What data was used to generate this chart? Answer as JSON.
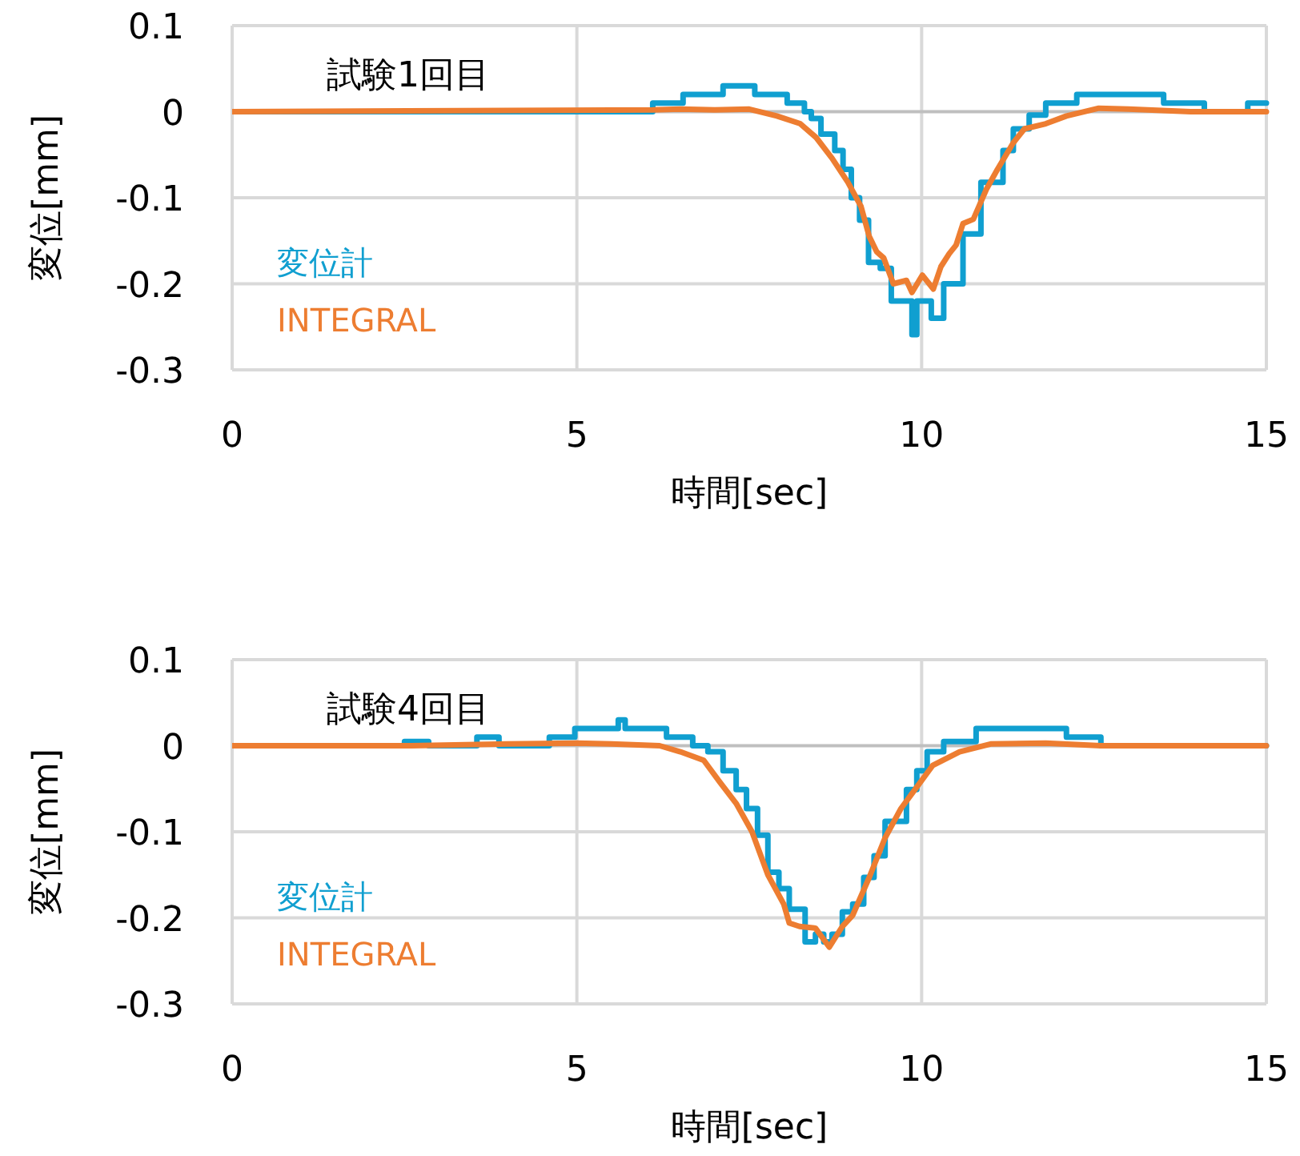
{
  "chart_data": [
    {
      "type": "line",
      "title": "試験1回目",
      "xlabel": "時間[sec]",
      "ylabel": "変位[mm]",
      "xlim": [
        0,
        15
      ],
      "xticks": [
        0,
        5,
        10,
        15
      ],
      "ylim": [
        -0.3,
        0.1
      ],
      "yticks": [
        -0.3,
        -0.2,
        -0.1,
        0,
        0.1
      ],
      "grid": true,
      "legend": "bottom left",
      "series": [
        {
          "name": "変位計",
          "type": "step",
          "color": "#109fd0",
          "x": [
            0,
            6.1,
            6.54,
            7.12,
            7.58,
            8.05,
            8.3,
            8.4,
            8.54,
            8.74,
            8.86,
            8.98,
            9.1,
            9.23,
            9.4,
            9.56,
            9.86,
            9.93,
            10.14,
            10.32,
            10.6,
            10.86,
            11.18,
            11.33,
            11.56,
            11.8,
            12.25,
            13.51,
            14.1,
            14.73,
            15
          ],
          "values": [
            0,
            0.01,
            0.02,
            0.03,
            0.02,
            0.01,
            0,
            -0.008,
            -0.026,
            -0.045,
            -0.067,
            -0.1,
            -0.126,
            -0.175,
            -0.182,
            -0.22,
            -0.259,
            -0.22,
            -0.24,
            -0.2,
            -0.142,
            -0.082,
            -0.045,
            -0.02,
            -0.004,
            0.01,
            0.02,
            0.01,
            0,
            0.01,
            0.01
          ]
        },
        {
          "name": "INTEGRAL",
          "type": "line",
          "color": "#ed7d31",
          "x": [
            0,
            6.1,
            6.5,
            7.0,
            7.5,
            7.9,
            8.24,
            8.47,
            8.7,
            8.93,
            9.12,
            9.24,
            9.35,
            9.45,
            9.59,
            9.78,
            9.86,
            10.01,
            10.17,
            10.28,
            10.4,
            10.5,
            10.6,
            10.75,
            10.94,
            11.1,
            11.33,
            11.49,
            11.8,
            12.1,
            12.57,
            13.0,
            13.9,
            15
          ],
          "values": [
            0,
            0.002,
            0.003,
            0.002,
            0.003,
            -0.005,
            -0.014,
            -0.03,
            -0.054,
            -0.082,
            -0.11,
            -0.145,
            -0.163,
            -0.17,
            -0.2,
            -0.196,
            -0.21,
            -0.19,
            -0.206,
            -0.18,
            -0.165,
            -0.155,
            -0.13,
            -0.125,
            -0.09,
            -0.067,
            -0.036,
            -0.02,
            -0.014,
            -0.005,
            0.004,
            0.003,
            0,
            0
          ]
        }
      ]
    },
    {
      "type": "line",
      "title": "試験4回目",
      "xlabel": "時間[sec]",
      "ylabel": "変位[mm]",
      "xlim": [
        0,
        15
      ],
      "xticks": [
        0,
        5,
        10,
        15
      ],
      "ylim": [
        -0.3,
        0.1
      ],
      "yticks": [
        -0.3,
        -0.2,
        -0.1,
        0,
        0.1
      ],
      "grid": true,
      "legend": "bottom left",
      "series": [
        {
          "name": "変位計",
          "type": "step",
          "color": "#109fd0",
          "x": [
            0,
            2.5,
            2.85,
            3.55,
            3.87,
            4.6,
            4.97,
            5.6,
            5.7,
            6.3,
            6.68,
            6.9,
            7.12,
            7.31,
            7.46,
            7.62,
            7.77,
            7.93,
            8.08,
            8.31,
            8.46,
            8.58,
            8.7,
            8.85,
            9.0,
            9.16,
            9.31,
            9.47,
            9.78,
            9.93,
            10.08,
            10.32,
            10.79,
            12.1,
            12.6,
            15
          ],
          "values": [
            0,
            0.005,
            0,
            0.01,
            0,
            0.01,
            0.02,
            0.03,
            0.02,
            0.01,
            0,
            -0.007,
            -0.029,
            -0.051,
            -0.073,
            -0.104,
            -0.147,
            -0.166,
            -0.19,
            -0.228,
            -0.219,
            -0.228,
            -0.219,
            -0.193,
            -0.184,
            -0.153,
            -0.128,
            -0.088,
            -0.051,
            -0.029,
            -0.007,
            0.005,
            0.02,
            0.01,
            0,
            0
          ]
        },
        {
          "name": "INTEGRAL",
          "type": "line",
          "color": "#ed7d31",
          "x": [
            0,
            2.6,
            4.0,
            5.0,
            5.5,
            6.2,
            6.5,
            6.84,
            7.07,
            7.31,
            7.54,
            7.77,
            8.0,
            8.08,
            8.23,
            8.46,
            8.66,
            8.85,
            9.0,
            9.24,
            9.47,
            9.7,
            9.93,
            10.16,
            10.55,
            11.0,
            11.8,
            12.6,
            15
          ],
          "values": [
            0,
            0,
            0.002,
            0.003,
            0.002,
            0,
            -0.007,
            -0.017,
            -0.042,
            -0.067,
            -0.1,
            -0.15,
            -0.184,
            -0.206,
            -0.21,
            -0.212,
            -0.234,
            -0.21,
            -0.197,
            -0.153,
            -0.107,
            -0.073,
            -0.048,
            -0.023,
            -0.007,
            0.002,
            0.003,
            0,
            0
          ]
        }
      ]
    }
  ]
}
